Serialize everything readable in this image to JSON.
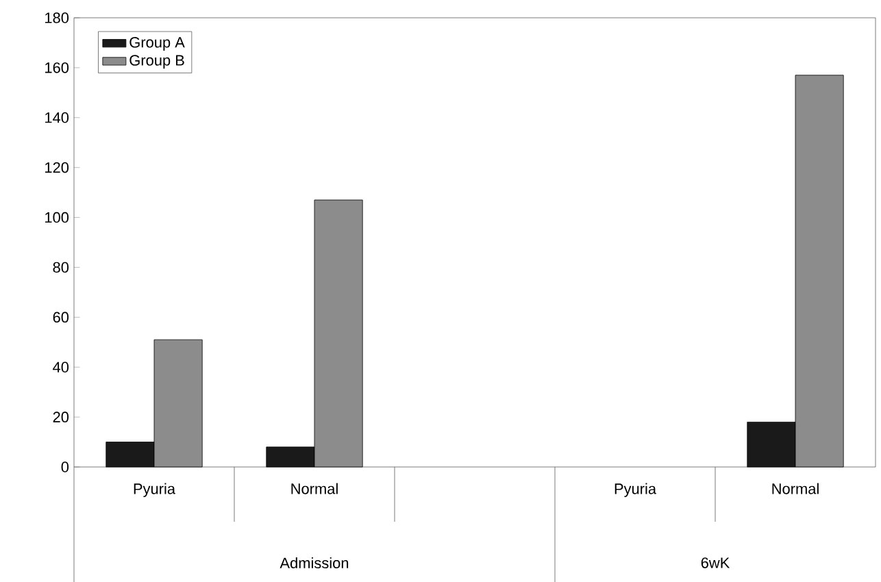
{
  "chart_data": {
    "type": "bar",
    "categories": [
      "Pyuria",
      "Normal",
      null,
      "Pyuria",
      "Normal"
    ],
    "series": [
      {
        "name": "Group A",
        "color": "#1a1a1a",
        "values": [
          10,
          8,
          null,
          null,
          18
        ]
      },
      {
        "name": "Group B",
        "color": "#8c8c8c",
        "values": [
          51,
          107,
          null,
          null,
          157
        ]
      }
    ],
    "ylim": [
      0,
      180
    ],
    "yticks": [
      0,
      20,
      40,
      60,
      80,
      100,
      120,
      140,
      160,
      180
    ],
    "annotations": [
      "Admission",
      "6wK"
    ],
    "legend": "top left",
    "grid": false
  }
}
